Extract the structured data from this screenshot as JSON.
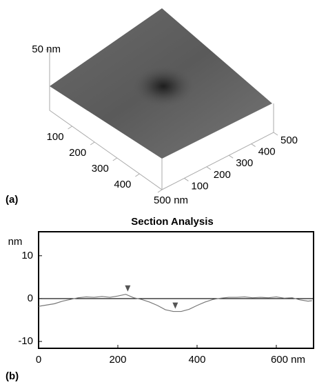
{
  "chart_data": [
    {
      "type": "surface",
      "panel_label": "(a)",
      "xlim": [
        0,
        500
      ],
      "xticks": [
        100,
        200,
        300,
        400,
        {
          "value": 500,
          "label": "500 nm"
        }
      ],
      "ylim": [
        0,
        500
      ],
      "yticks": [
        100,
        200,
        300,
        400,
        500
      ],
      "zlim": [
        0,
        50
      ],
      "zticks": [
        {
          "value": 50,
          "label": "50 nm"
        }
      ]
    },
    {
      "type": "line",
      "panel_label": "(b)",
      "title": "Section Analysis",
      "y_label": "nm",
      "xlim": [
        0,
        694
      ],
      "xticks": [
        0,
        200,
        400,
        {
          "value": 600,
          "label": "600 nm"
        }
      ],
      "ylim": [
        -11.6,
        15.6
      ],
      "yticks": [
        10,
        0,
        -10
      ],
      "reference_line": 0,
      "series": [
        {
          "color": "#777777",
          "x": [
            0,
            20,
            40,
            60,
            80,
            100,
            120,
            140,
            160,
            180,
            200,
            220,
            240,
            260,
            280,
            300,
            320,
            340,
            360,
            380,
            400,
            420,
            440,
            460,
            480,
            500,
            520,
            540,
            560,
            580,
            600,
            620,
            640,
            660,
            680,
            690
          ],
          "values": [
            -1.8,
            -1.5,
            -1.2,
            -0.6,
            -0.2,
            0.2,
            0.4,
            0.3,
            0.5,
            0.3,
            0.6,
            1.0,
            0.2,
            -0.2,
            -0.8,
            -1.6,
            -2.6,
            -3.0,
            -3.0,
            -2.5,
            -1.6,
            -0.8,
            -0.2,
            0.1,
            0.3,
            0.3,
            0.4,
            0.2,
            0.3,
            0.2,
            0.4,
            0.1,
            0.2,
            -0.3,
            -0.6,
            -0.5
          ]
        }
      ],
      "markers": {
        "color": "#555555",
        "x": [
          225,
          345
        ],
        "values": [
          1.0,
          -3.0
        ]
      }
    }
  ]
}
